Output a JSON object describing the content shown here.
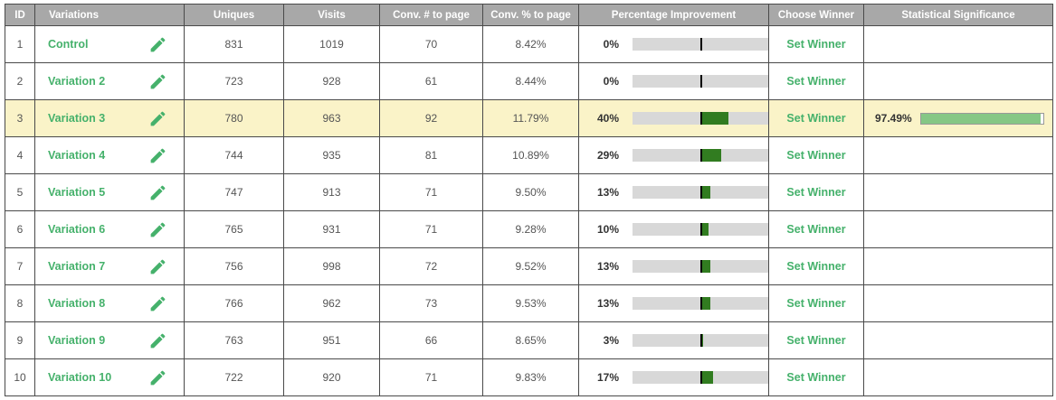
{
  "header": {
    "columns": [
      "ID",
      "Variations",
      "Uniques",
      "Visits",
      "Conv. # to page",
      "Conv. % to page",
      "Percentage Improvement",
      "Choose Winner",
      "Statistical Significance"
    ]
  },
  "actions": {
    "set_winner_label": "Set Winner"
  },
  "icons": {
    "edit": "pencil-icon"
  },
  "colors": {
    "accent_green": "#45b16b",
    "header_bg": "#a8a8a8",
    "header_text": "#ffffff",
    "row_highlight": "#faf3c8",
    "improvement_bar_fill": "#317c20",
    "improvement_bar_track": "#d8d8d8",
    "improvement_zero_tick": "#000000",
    "significance_bar_fill": "#85c785",
    "significance_bar_border": "#999999",
    "table_border": "#4a4a4a"
  },
  "rows": [
    {
      "id": 1,
      "name": "Control",
      "uniques": 831,
      "visits": 1019,
      "conv_num": 70,
      "conv_pct": "8.42%",
      "improvement_label": "0%",
      "improvement_value": 0,
      "significance_label": null,
      "significance_value": null,
      "highlighted": false
    },
    {
      "id": 2,
      "name": "Variation 2",
      "uniques": 723,
      "visits": 928,
      "conv_num": 61,
      "conv_pct": "8.44%",
      "improvement_label": "0%",
      "improvement_value": 0,
      "significance_label": null,
      "significance_value": null,
      "highlighted": false
    },
    {
      "id": 3,
      "name": "Variation 3",
      "uniques": 780,
      "visits": 963,
      "conv_num": 92,
      "conv_pct": "11.79%",
      "improvement_label": "40%",
      "improvement_value": 40,
      "significance_label": "97.49%",
      "significance_value": 97.49,
      "highlighted": true
    },
    {
      "id": 4,
      "name": "Variation 4",
      "uniques": 744,
      "visits": 935,
      "conv_num": 81,
      "conv_pct": "10.89%",
      "improvement_label": "29%",
      "improvement_value": 29,
      "significance_label": null,
      "significance_value": null,
      "highlighted": false
    },
    {
      "id": 5,
      "name": "Variation 5",
      "uniques": 747,
      "visits": 913,
      "conv_num": 71,
      "conv_pct": "9.50%",
      "improvement_label": "13%",
      "improvement_value": 13,
      "significance_label": null,
      "significance_value": null,
      "highlighted": false
    },
    {
      "id": 6,
      "name": "Variation 6",
      "uniques": 765,
      "visits": 931,
      "conv_num": 71,
      "conv_pct": "9.28%",
      "improvement_label": "10%",
      "improvement_value": 10,
      "significance_label": null,
      "significance_value": null,
      "highlighted": false
    },
    {
      "id": 7,
      "name": "Variation 7",
      "uniques": 756,
      "visits": 998,
      "conv_num": 72,
      "conv_pct": "9.52%",
      "improvement_label": "13%",
      "improvement_value": 13,
      "significance_label": null,
      "significance_value": null,
      "highlighted": false
    },
    {
      "id": 8,
      "name": "Variation 8",
      "uniques": 766,
      "visits": 962,
      "conv_num": 73,
      "conv_pct": "9.53%",
      "improvement_label": "13%",
      "improvement_value": 13,
      "significance_label": null,
      "significance_value": null,
      "highlighted": false
    },
    {
      "id": 9,
      "name": "Variation 9",
      "uniques": 763,
      "visits": 951,
      "conv_num": 66,
      "conv_pct": "8.65%",
      "improvement_label": "3%",
      "improvement_value": 3,
      "significance_label": null,
      "significance_value": null,
      "highlighted": false
    },
    {
      "id": 10,
      "name": "Variation 10",
      "uniques": 722,
      "visits": 920,
      "conv_num": 71,
      "conv_pct": "9.83%",
      "improvement_label": "17%",
      "improvement_value": 17,
      "significance_label": null,
      "significance_value": null,
      "highlighted": false
    }
  ]
}
